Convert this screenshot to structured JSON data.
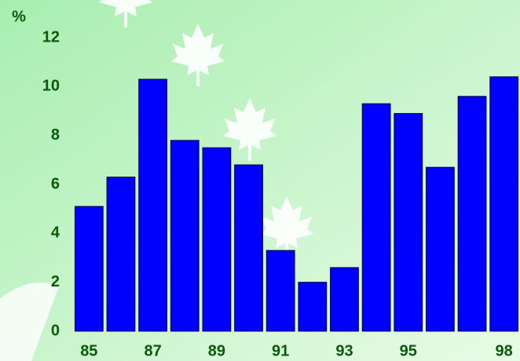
{
  "chart_data": {
    "type": "bar",
    "y_axis_label": "%",
    "categories": [
      "85",
      null,
      "87",
      null,
      "89",
      null,
      "91",
      null,
      "93",
      null,
      "95",
      null,
      null,
      "98"
    ],
    "values": [
      5.1,
      6.3,
      10.3,
      7.8,
      7.5,
      6.8,
      3.3,
      2.0,
      2.6,
      9.3,
      8.9,
      6.7,
      9.6,
      10.4
    ],
    "color": "#0000ff",
    "ylim": [
      0,
      12
    ],
    "yticks": [
      0,
      2,
      4,
      6,
      8,
      10,
      12
    ],
    "grid": false
  }
}
